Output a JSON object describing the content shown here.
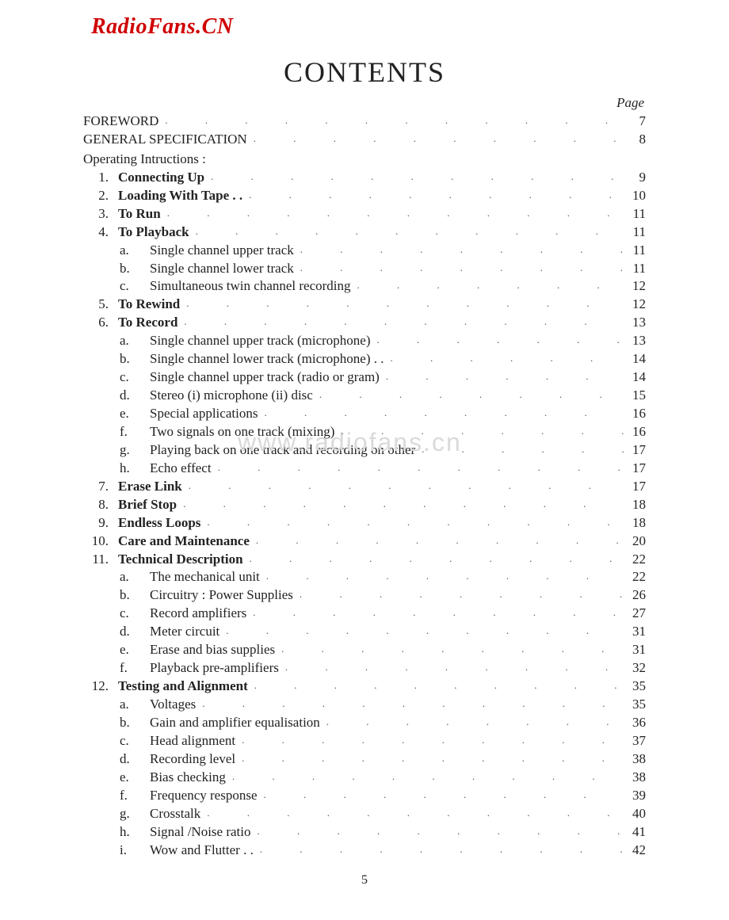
{
  "watermark_top": "RadioFans.CN",
  "watermark_mid": "www.radiofans.cn",
  "title": "CONTENTS",
  "page_header": "Page",
  "page_number_footer": "5",
  "colors": {
    "background": "#ffffff",
    "text": "#222222",
    "watermark_red": "#d00000",
    "watermark_grey": "#dadada",
    "leader_dots": "#555555"
  },
  "typography": {
    "body_font": "Times New Roman",
    "title_fontsize": 36,
    "body_fontsize": 17,
    "page_header_style": "italic"
  },
  "leader_char": ". .",
  "entries": [
    {
      "type": "top",
      "label": "FOREWORD",
      "page": "7"
    },
    {
      "type": "top",
      "label": "GENERAL  SPECIFICATION",
      "page": "8"
    },
    {
      "type": "section",
      "label": "Operating Intructions :"
    },
    {
      "type": "num",
      "num": "1.",
      "label": "Connecting  Up",
      "bold": true,
      "page": "9"
    },
    {
      "type": "num",
      "num": "2.",
      "label": "Loading With Tape",
      "bold": true,
      "trail": " . .",
      "page": "10"
    },
    {
      "type": "num",
      "num": "3.",
      "label": "To  Run",
      "bold": true,
      "page": "11"
    },
    {
      "type": "num",
      "num": "4.",
      "label": "To  Playback",
      "bold": true,
      "page": "11"
    },
    {
      "type": "sub",
      "letter": "a.",
      "label": "Single channel upper track",
      "page": "11"
    },
    {
      "type": "sub",
      "letter": "b.",
      "label": "Single channel lower track",
      "page": "11"
    },
    {
      "type": "sub",
      "letter": "c.",
      "label": "Simultaneous twin channel recording",
      "page": "12"
    },
    {
      "type": "num",
      "num": "5.",
      "label": "To  Rewind",
      "bold": true,
      "page": "12"
    },
    {
      "type": "num",
      "num": "6.",
      "label": "To  Record",
      "bold": true,
      "page": "13"
    },
    {
      "type": "sub",
      "letter": "a.",
      "label": "Single channel upper track (microphone)",
      "page": "13"
    },
    {
      "type": "sub",
      "letter": "b.",
      "label": "Single channel lower track (microphone)",
      "trail": "  . .",
      "page": "14"
    },
    {
      "type": "sub",
      "letter": "c.",
      "label": "Single channel upper track (radio or gram)",
      "page": "14"
    },
    {
      "type": "sub",
      "letter": "d.",
      "label": "Stereo   (i) microphone    (ii) disc",
      "page": "15"
    },
    {
      "type": "sub",
      "letter": "e.",
      "label": "Special applications",
      "page": "16"
    },
    {
      "type": "sub",
      "letter": "f.",
      "label": "Two signals on one track (mixing)",
      "page": "16"
    },
    {
      "type": "sub",
      "letter": "g.",
      "label": "Playing back on one track and recording on other",
      "page": "17"
    },
    {
      "type": "sub",
      "letter": "h.",
      "label": "Echo effect",
      "page": "17"
    },
    {
      "type": "num",
      "num": "7.",
      "label": "Erase  Link",
      "bold": true,
      "page": "17"
    },
    {
      "type": "num",
      "num": "8.",
      "label": "Brief  Stop",
      "bold": true,
      "page": "18"
    },
    {
      "type": "num",
      "num": "9.",
      "label": "Endless  Loops",
      "bold": true,
      "page": "18"
    },
    {
      "type": "num",
      "num": "10.",
      "label": "Care  and  Maintenance",
      "bold": true,
      "page": "20"
    },
    {
      "type": "num",
      "num": "11.",
      "label": "Technical  Description",
      "bold": true,
      "page": "22"
    },
    {
      "type": "sub",
      "letter": "a.",
      "label": "The mechanical unit",
      "page": "22"
    },
    {
      "type": "sub",
      "letter": "b.",
      "label": "Circuitry :   Power Supplies",
      "page": "26"
    },
    {
      "type": "sub",
      "letter": "c.",
      "label": "Record amplifiers",
      "page": "27"
    },
    {
      "type": "sub",
      "letter": "d.",
      "label": "Meter circuit",
      "page": "31"
    },
    {
      "type": "sub",
      "letter": "e.",
      "label": "Erase and bias supplies",
      "page": "31"
    },
    {
      "type": "sub",
      "letter": "f.",
      "label": "Playback pre-amplifiers",
      "page": "32"
    },
    {
      "type": "num",
      "num": "12.",
      "label": "Testing  and  Alignment",
      "bold": true,
      "page": "35"
    },
    {
      "type": "sub",
      "letter": "a.",
      "label": "Voltages",
      "page": "35"
    },
    {
      "type": "sub",
      "letter": "b.",
      "label": "Gain and amplifier equalisation",
      "page": "36"
    },
    {
      "type": "sub",
      "letter": "c.",
      "label": "Head alignment",
      "page": "37"
    },
    {
      "type": "sub",
      "letter": "d.",
      "label": "Recording level",
      "page": "38"
    },
    {
      "type": "sub",
      "letter": "e.",
      "label": "Bias checking",
      "page": "38"
    },
    {
      "type": "sub",
      "letter": "f.",
      "label": "Frequency response",
      "page": "39"
    },
    {
      "type": "sub",
      "letter": "g.",
      "label": "Crosstalk",
      "page": "40"
    },
    {
      "type": "sub",
      "letter": "h.",
      "label": "Signal /Noise ratio",
      "page": "41"
    },
    {
      "type": "sub",
      "letter": "i.",
      "label": "Wow and Flutter",
      "trail": "  . .",
      "page": "42"
    }
  ]
}
